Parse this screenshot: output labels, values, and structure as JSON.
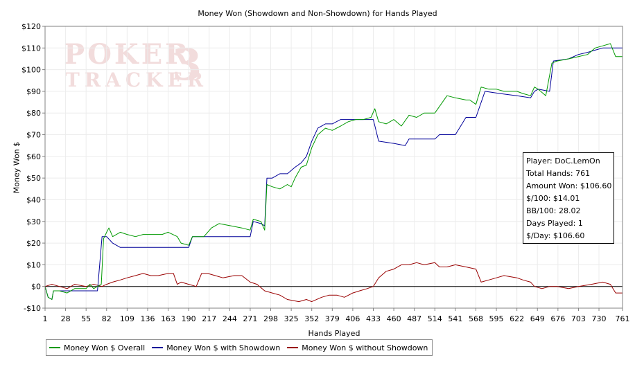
{
  "chart_data": {
    "type": "line",
    "title": "Money Won (Showdown and Non-Showdown) for Hands Played",
    "xlabel": "Hands Played",
    "ylabel": "Money Won $",
    "xlim": [
      1,
      761
    ],
    "ylim": [
      -10,
      120
    ],
    "x_ticks": [
      1,
      28,
      55,
      82,
      109,
      136,
      163,
      190,
      217,
      244,
      271,
      298,
      325,
      352,
      379,
      406,
      433,
      460,
      487,
      514,
      541,
      568,
      595,
      622,
      649,
      676,
      703,
      730,
      761
    ],
    "y_ticks": [
      -10,
      0,
      10,
      20,
      30,
      40,
      50,
      60,
      70,
      80,
      90,
      100,
      110,
      120
    ],
    "y_tick_labels": [
      "-$10",
      "$0",
      "$10",
      "$20",
      "$30",
      "$40",
      "$50",
      "$60",
      "$70",
      "$80",
      "$90",
      "$100",
      "$110",
      "$120"
    ],
    "grid": true,
    "legend_position": "bottom-left",
    "watermark": "POKER TRACKER 3",
    "series": [
      {
        "name": "Money Won $ Overall",
        "color": "#009900",
        "points": [
          [
            1,
            0
          ],
          [
            5,
            -5
          ],
          [
            10,
            -6
          ],
          [
            12,
            -2
          ],
          [
            20,
            -2
          ],
          [
            30,
            -3
          ],
          [
            40,
            -1
          ],
          [
            55,
            -1
          ],
          [
            60,
            1
          ],
          [
            65,
            -1
          ],
          [
            75,
            1
          ],
          [
            78,
            22
          ],
          [
            82,
            25
          ],
          [
            85,
            27
          ],
          [
            90,
            23
          ],
          [
            100,
            25
          ],
          [
            109,
            24
          ],
          [
            120,
            23
          ],
          [
            130,
            24
          ],
          [
            140,
            24
          ],
          [
            155,
            24
          ],
          [
            163,
            25
          ],
          [
            175,
            23
          ],
          [
            180,
            20
          ],
          [
            190,
            19
          ],
          [
            195,
            23
          ],
          [
            210,
            23
          ],
          [
            220,
            27
          ],
          [
            230,
            29
          ],
          [
            245,
            28
          ],
          [
            260,
            27
          ],
          [
            271,
            26
          ],
          [
            275,
            31
          ],
          [
            285,
            30
          ],
          [
            290,
            26
          ],
          [
            293,
            47
          ],
          [
            300,
            46
          ],
          [
            310,
            45
          ],
          [
            320,
            47
          ],
          [
            325,
            46
          ],
          [
            330,
            50
          ],
          [
            338,
            55
          ],
          [
            345,
            56
          ],
          [
            352,
            64
          ],
          [
            360,
            70
          ],
          [
            370,
            73
          ],
          [
            379,
            72
          ],
          [
            390,
            74
          ],
          [
            400,
            76
          ],
          [
            410,
            77
          ],
          [
            420,
            77
          ],
          [
            430,
            78
          ],
          [
            435,
            82
          ],
          [
            440,
            76
          ],
          [
            450,
            75
          ],
          [
            460,
            77
          ],
          [
            470,
            74
          ],
          [
            480,
            79
          ],
          [
            490,
            78
          ],
          [
            500,
            80
          ],
          [
            514,
            80
          ],
          [
            520,
            83
          ],
          [
            530,
            88
          ],
          [
            541,
            87
          ],
          [
            555,
            86
          ],
          [
            560,
            86
          ],
          [
            568,
            84
          ],
          [
            575,
            92
          ],
          [
            585,
            91
          ],
          [
            595,
            91
          ],
          [
            605,
            90
          ],
          [
            622,
            90
          ],
          [
            630,
            89
          ],
          [
            640,
            88
          ],
          [
            645,
            92
          ],
          [
            650,
            91
          ],
          [
            660,
            88
          ],
          [
            668,
            103
          ],
          [
            675,
            104
          ],
          [
            690,
            105
          ],
          [
            703,
            106
          ],
          [
            715,
            107
          ],
          [
            725,
            110
          ],
          [
            735,
            111
          ],
          [
            745,
            112
          ],
          [
            752,
            106
          ],
          [
            761,
            106
          ]
        ]
      },
      {
        "name": "Money Won $ with Showdown",
        "color": "#000099",
        "points": [
          [
            1,
            0
          ],
          [
            5,
            -5
          ],
          [
            10,
            -6
          ],
          [
            12,
            -2
          ],
          [
            30,
            -2
          ],
          [
            55,
            -2
          ],
          [
            70,
            -2
          ],
          [
            76,
            23
          ],
          [
            82,
            23
          ],
          [
            90,
            20
          ],
          [
            100,
            18
          ],
          [
            109,
            18
          ],
          [
            140,
            18
          ],
          [
            163,
            18
          ],
          [
            175,
            18
          ],
          [
            190,
            18
          ],
          [
            195,
            23
          ],
          [
            220,
            23
          ],
          [
            260,
            23
          ],
          [
            271,
            23
          ],
          [
            275,
            30
          ],
          [
            285,
            29
          ],
          [
            290,
            28
          ],
          [
            293,
            50
          ],
          [
            300,
            50
          ],
          [
            310,
            52
          ],
          [
            320,
            52
          ],
          [
            330,
            55
          ],
          [
            338,
            57
          ],
          [
            345,
            60
          ],
          [
            352,
            67
          ],
          [
            360,
            73
          ],
          [
            370,
            75
          ],
          [
            379,
            75
          ],
          [
            390,
            77
          ],
          [
            400,
            77
          ],
          [
            410,
            77
          ],
          [
            433,
            77
          ],
          [
            440,
            67
          ],
          [
            460,
            66
          ],
          [
            475,
            65
          ],
          [
            480,
            68
          ],
          [
            490,
            68
          ],
          [
            514,
            68
          ],
          [
            520,
            70
          ],
          [
            530,
            70
          ],
          [
            541,
            70
          ],
          [
            555,
            78
          ],
          [
            568,
            78
          ],
          [
            580,
            90
          ],
          [
            600,
            89
          ],
          [
            622,
            88
          ],
          [
            640,
            87
          ],
          [
            645,
            90
          ],
          [
            650,
            91
          ],
          [
            665,
            90
          ],
          [
            670,
            104
          ],
          [
            690,
            105
          ],
          [
            703,
            107
          ],
          [
            715,
            108
          ],
          [
            725,
            109
          ],
          [
            735,
            110
          ],
          [
            748,
            110
          ],
          [
            752,
            110
          ],
          [
            761,
            110
          ]
        ]
      },
      {
        "name": "Money Won $ without Showdown",
        "color": "#990000",
        "points": [
          [
            1,
            0
          ],
          [
            10,
            1
          ],
          [
            20,
            0
          ],
          [
            30,
            -1
          ],
          [
            40,
            1
          ],
          [
            55,
            0
          ],
          [
            65,
            1
          ],
          [
            76,
            0
          ],
          [
            82,
            1
          ],
          [
            90,
            2
          ],
          [
            100,
            3
          ],
          [
            109,
            4
          ],
          [
            120,
            5
          ],
          [
            130,
            6
          ],
          [
            140,
            5
          ],
          [
            150,
            5
          ],
          [
            163,
            6
          ],
          [
            170,
            6
          ],
          [
            175,
            1
          ],
          [
            180,
            2
          ],
          [
            190,
            1
          ],
          [
            200,
            0
          ],
          [
            207,
            6
          ],
          [
            215,
            6
          ],
          [
            225,
            5
          ],
          [
            235,
            4
          ],
          [
            250,
            5
          ],
          [
            260,
            5
          ],
          [
            271,
            2
          ],
          [
            280,
            1
          ],
          [
            290,
            -2
          ],
          [
            300,
            -3
          ],
          [
            310,
            -4
          ],
          [
            320,
            -6
          ],
          [
            335,
            -7
          ],
          [
            345,
            -6
          ],
          [
            352,
            -7
          ],
          [
            365,
            -5
          ],
          [
            375,
            -4
          ],
          [
            385,
            -4
          ],
          [
            395,
            -5
          ],
          [
            406,
            -3
          ],
          [
            415,
            -2
          ],
          [
            425,
            -1
          ],
          [
            433,
            0
          ],
          [
            440,
            4
          ],
          [
            450,
            7
          ],
          [
            460,
            8
          ],
          [
            470,
            10
          ],
          [
            480,
            10
          ],
          [
            490,
            11
          ],
          [
            500,
            10
          ],
          [
            514,
            11
          ],
          [
            520,
            9
          ],
          [
            530,
            9
          ],
          [
            541,
            10
          ],
          [
            555,
            9
          ],
          [
            568,
            8
          ],
          [
            575,
            2
          ],
          [
            585,
            3
          ],
          [
            595,
            4
          ],
          [
            605,
            5
          ],
          [
            622,
            4
          ],
          [
            630,
            3
          ],
          [
            640,
            2
          ],
          [
            645,
            0
          ],
          [
            655,
            -1
          ],
          [
            665,
            0
          ],
          [
            675,
            0
          ],
          [
            690,
            -1
          ],
          [
            703,
            0
          ],
          [
            720,
            1
          ],
          [
            735,
            2
          ],
          [
            745,
            1
          ],
          [
            752,
            -3
          ],
          [
            761,
            -3
          ]
        ]
      }
    ]
  },
  "stats_box": {
    "player": "Player: DoC.LemOn",
    "total_hands": "Total Hands: 761",
    "amount_won": "Amount Won: $106.60",
    "per_100": "$/100: $14.01",
    "bb_100": "BB/100: 28.02",
    "days_played": "Days Played: 1",
    "per_day": "$/Day: $106.60"
  }
}
